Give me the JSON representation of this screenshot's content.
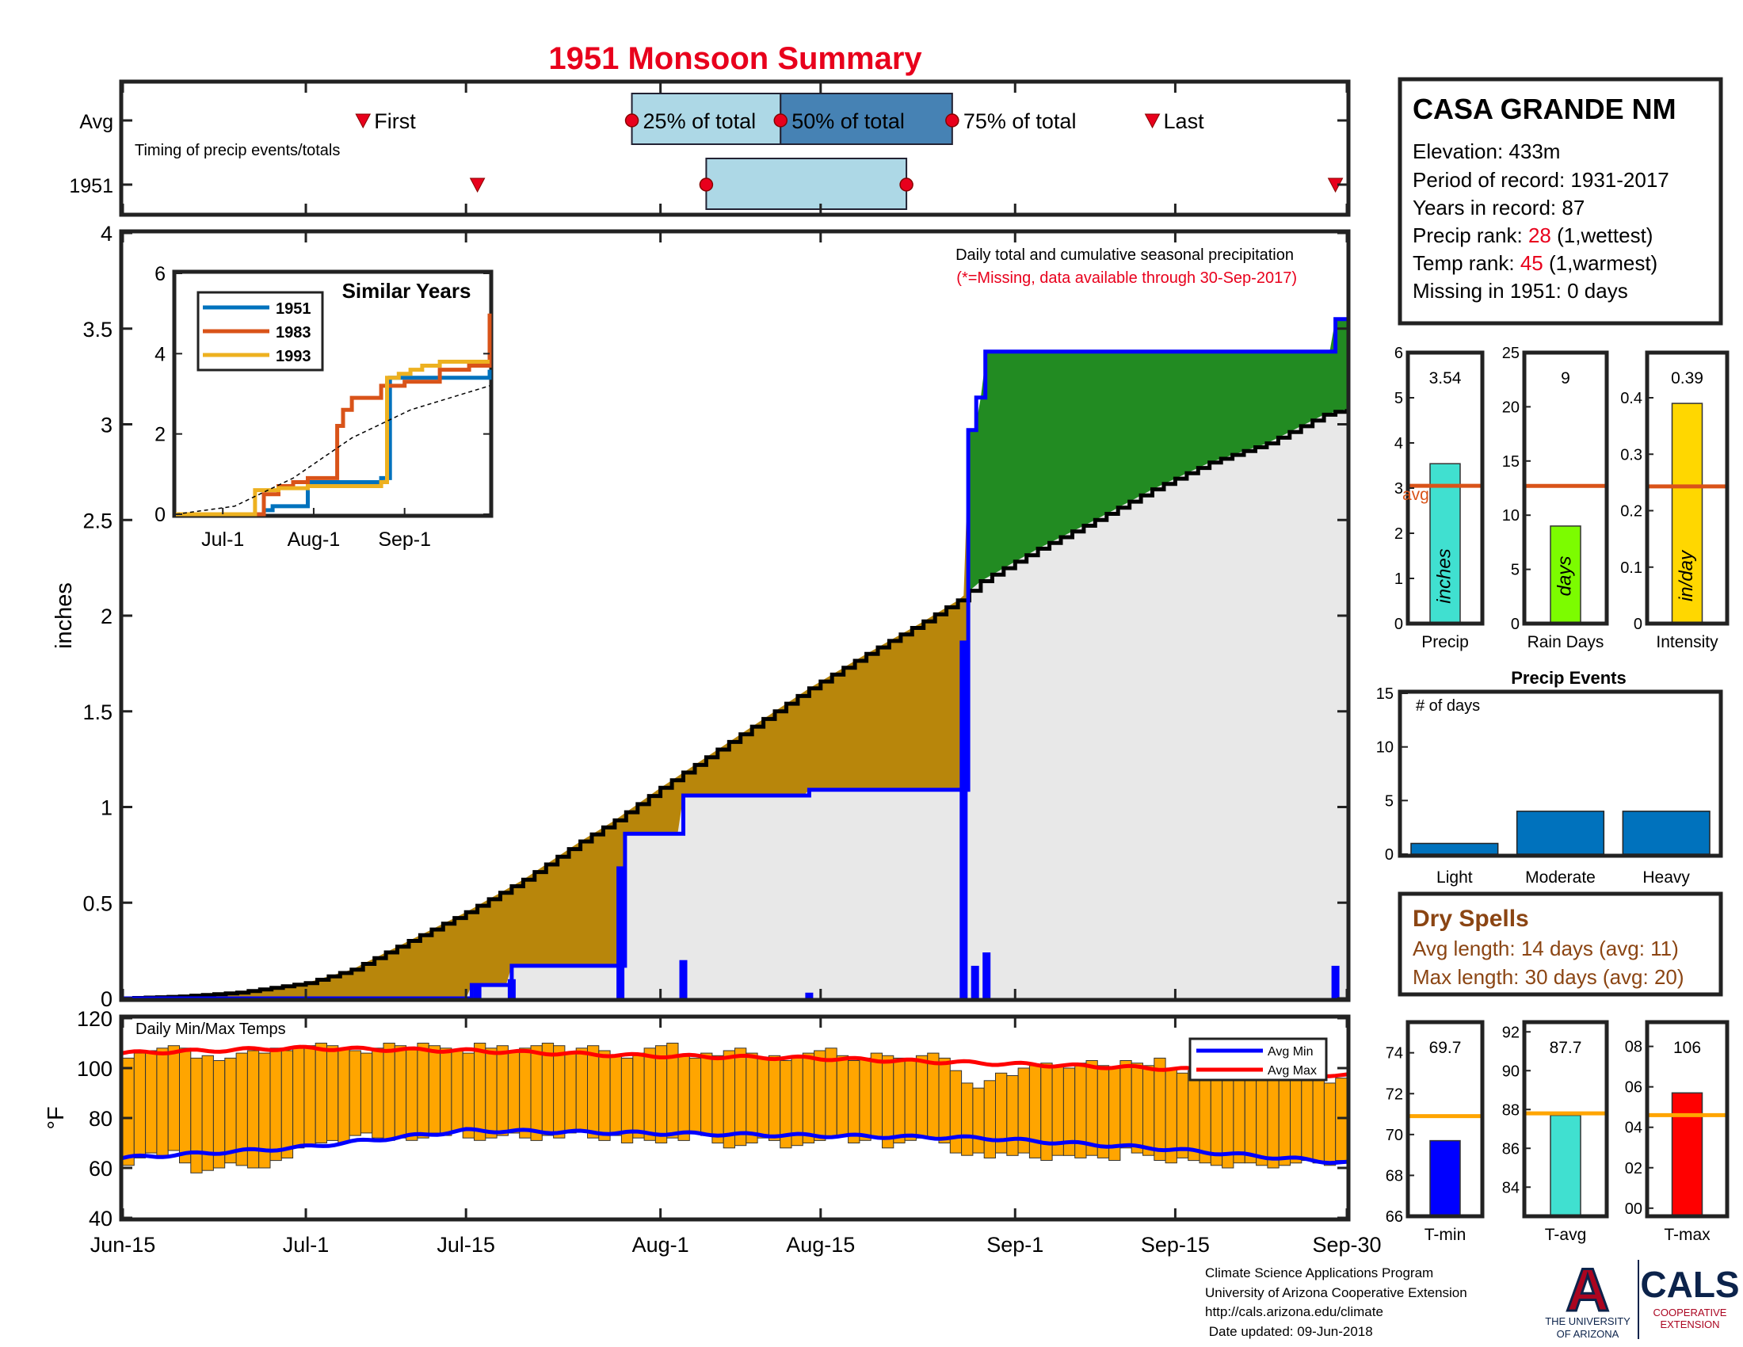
{
  "title": "1951 Monsoon Summary",
  "station": {
    "name": "CASA GRANDE NM",
    "elevation_label": "Elevation: 433m",
    "period_label": "Period of record: 1931-2017",
    "years_label": "Years in record: 87",
    "precip_rank_prefix": "Precip rank: ",
    "precip_rank": "28",
    "precip_rank_suffix": " (1,wettest)",
    "temp_rank_prefix": "Temp rank: ",
    "temp_rank": "45",
    "temp_rank_suffix": " (1,warmest)",
    "missing_label": "Missing in 1951: 0 days"
  },
  "colors": {
    "title_red": "#e8001c",
    "rank_red": "#e8001c",
    "brown_text": "#8b4513",
    "cum_obs_blue": "#0000ff",
    "surplus_green": "#228b22",
    "deficit_brown": "#b8860b",
    "normal_gray": "#e8e8e8",
    "timing_light": "#add8e6",
    "timing_dark": "#4682b4",
    "temp_bar": "#ffa500",
    "precip_bar": "#40e0d0",
    "raindays_bar": "#7cfc00",
    "intensity_bar": "#ffd700",
    "events_bar": "#0072bd",
    "avg_line_orange": "#d95319",
    "tmin_bar": "#0000ff",
    "tavg_bar": "#40e0d0",
    "tmax_bar": "#ff0000"
  },
  "timing_panel": {
    "row_labels": [
      "Avg",
      "1951"
    ],
    "caption": "Timing of precip events/totals",
    "avg_labels": {
      "first": "First",
      "p25": "25% of total",
      "p50": "50% of total",
      "p75": "75% of total",
      "last": "Last"
    },
    "avg_days": {
      "first": 21,
      "p25": 44.5,
      "p50": 57.5,
      "p75": 72.5,
      "last": 90
    },
    "y1951_days": {
      "first": 31,
      "p25": 51,
      "p75": 68.5,
      "last": 106
    }
  },
  "x_axis": {
    "tick_labels": [
      "Jun-15",
      "Jul-1",
      "Jul-15",
      "Aug-1",
      "Aug-15",
      "Sep-1",
      "Sep-15",
      "Sep-30"
    ],
    "tick_days": [
      0,
      16,
      30,
      47,
      61,
      78,
      92,
      107
    ]
  },
  "chart_data": [
    {
      "type": "area",
      "title": "Daily total and cumulative seasonal precipitation",
      "subtitle": "(*=Missing, data available through 30-Sep-2017)",
      "ylabel": "inches",
      "xlim": [
        0,
        107
      ],
      "ylim": [
        0,
        4
      ],
      "yticks": [
        0,
        0.5,
        1,
        1.5,
        2,
        2.5,
        3,
        3.5,
        4
      ],
      "cumulative_normal": {
        "x": [
          0,
          5,
          10,
          16,
          20,
          25,
          30,
          35,
          40,
          43,
          47,
          52,
          55,
          60,
          65,
          70,
          73,
          75,
          80,
          85,
          90,
          95,
          100,
          105,
          107
        ],
        "y": [
          0,
          0.01,
          0.03,
          0.08,
          0.15,
          0.3,
          0.45,
          0.62,
          0.82,
          0.93,
          1.1,
          1.3,
          1.42,
          1.62,
          1.8,
          1.97,
          2.08,
          2.18,
          2.35,
          2.5,
          2.66,
          2.8,
          2.9,
          3.05,
          3.08
        ]
      },
      "cumulative_1951": {
        "x": [
          0,
          30.5,
          34,
          43,
          43.9,
          49,
          60,
          73,
          73.9,
          74.6,
          75.4,
          106,
          107
        ],
        "y": [
          0,
          0.07,
          0.17,
          0.17,
          0.86,
          1.06,
          1.09,
          1.09,
          2.97,
          3.14,
          3.38,
          3.55,
          3.54
        ]
      },
      "daily_1951": {
        "x": [
          31,
          34,
          43.5,
          49,
          60,
          73.5,
          74.5,
          75.5,
          106
        ],
        "y": [
          0.07,
          0.1,
          0.69,
          0.2,
          0.03,
          1.87,
          0.17,
          0.24,
          0.17
        ]
      }
    },
    {
      "type": "line",
      "title": "Similar Years",
      "xtick_labels": [
        "Jul-1",
        "Aug-1",
        "Sep-1"
      ],
      "xtick_days": [
        16,
        47,
        78
      ],
      "xlim": [
        0,
        107
      ],
      "ylim": [
        0,
        6
      ],
      "yticks": [
        0,
        2,
        4,
        6
      ],
      "series": [
        {
          "name": "1951",
          "x": [
            0,
            28,
            30,
            33,
            45,
            70,
            73,
            76,
            80,
            107
          ],
          "y": [
            0,
            0,
            0.1,
            0.2,
            0.8,
            0.9,
            3.4,
            3.4,
            3.4,
            3.6
          ]
        },
        {
          "name": "1983",
          "x": [
            0,
            28,
            30,
            35,
            40,
            45,
            55,
            57,
            60,
            63,
            70,
            78,
            85,
            90,
            100,
            107
          ],
          "y": [
            0,
            0,
            0.5,
            0.7,
            0.8,
            0.9,
            2.2,
            2.6,
            2.9,
            2.9,
            3.2,
            3.3,
            3.3,
            3.6,
            3.7,
            5.0
          ]
        },
        {
          "name": "1993",
          "x": [
            0,
            26,
            27,
            35,
            45,
            70,
            72,
            76,
            80,
            84,
            90,
            107
          ],
          "y": [
            0,
            0,
            0.6,
            0.65,
            0.7,
            0.8,
            3.4,
            3.5,
            3.6,
            3.7,
            3.8,
            3.8
          ]
        },
        {
          "name": "",
          "x": [
            0,
            20,
            40,
            60,
            80,
            107
          ],
          "y": [
            0,
            0.2,
            0.9,
            1.9,
            2.6,
            3.2
          ]
        }
      ]
    },
    {
      "type": "bar",
      "title": "Daily Min/Max Temps",
      "ylabel": "°F",
      "ylim": [
        40,
        120
      ],
      "yticks": [
        40,
        60,
        80,
        100,
        120
      ],
      "legend": [
        "Avg Min",
        "Avg Max"
      ],
      "avg_min": {
        "x": [
          0,
          15,
          30,
          45,
          60,
          75,
          90,
          107
        ],
        "y": [
          64,
          68,
          75,
          74,
          73,
          72,
          68,
          62
        ]
      },
      "avg_max": {
        "x": [
          0,
          15,
          30,
          45,
          60,
          75,
          90,
          107
        ],
        "y": [
          106,
          108,
          107,
          105,
          104,
          102,
          100,
          97
        ]
      },
      "daily_min": [
        61,
        64,
        66,
        65,
        67,
        62,
        58,
        59,
        60,
        62,
        61,
        60,
        60,
        63,
        64,
        68,
        69,
        70,
        71,
        70,
        73,
        74,
        72,
        71,
        72,
        71,
        72,
        74,
        73,
        75,
        72,
        71,
        72,
        73,
        74,
        72,
        71,
        73,
        72,
        74,
        75,
        72,
        71,
        73,
        70,
        72,
        71,
        70,
        72,
        71,
        74,
        73,
        70,
        68,
        69,
        70,
        72,
        71,
        68,
        69,
        70,
        71,
        72,
        73,
        70,
        71,
        72,
        68,
        70,
        71,
        72,
        72,
        70,
        66,
        65,
        66,
        64,
        66,
        65,
        66,
        64,
        63,
        65,
        65,
        64,
        65,
        64,
        63,
        68,
        66,
        65,
        63,
        62,
        64,
        63,
        62,
        61,
        60,
        62,
        62,
        61,
        60,
        61,
        62,
        63,
        62,
        61,
        63
      ],
      "daily_max": [
        104,
        106,
        107,
        108,
        109,
        108,
        104,
        105,
        103,
        104,
        106,
        107,
        106,
        108,
        107,
        108,
        109,
        110,
        109,
        108,
        107,
        106,
        108,
        110,
        109,
        108,
        110,
        109,
        108,
        107,
        106,
        110,
        108,
        109,
        107,
        108,
        109,
        110,
        109,
        106,
        108,
        109,
        107,
        105,
        104,
        106,
        108,
        109,
        110,
        105,
        104,
        106,
        105,
        107,
        108,
        106,
        104,
        105,
        103,
        104,
        106,
        107,
        108,
        105,
        103,
        104,
        106,
        105,
        104,
        103,
        105,
        106,
        104,
        99,
        94,
        92,
        95,
        98,
        97,
        100,
        101,
        102,
        101,
        100,
        102,
        103,
        101,
        100,
        103,
        102,
        101,
        104,
        100,
        98,
        99,
        100,
        102,
        103,
        100,
        101,
        102,
        99,
        98,
        97,
        96,
        95,
        94,
        96
      ]
    },
    {
      "type": "bar",
      "categories": [
        "Precip",
        "Rain Days",
        "Intensity"
      ],
      "bar_text": [
        "inches",
        "days",
        "in/day"
      ],
      "values": [
        3.54,
        9,
        0.39
      ],
      "value_labels": [
        "3.54",
        "9",
        "0.39"
      ],
      "averages": [
        3.05,
        12.7,
        0.243
      ],
      "avg_label": "avg",
      "ylims": [
        [
          0,
          6
        ],
        [
          0,
          25
        ],
        [
          0,
          0.48
        ]
      ],
      "yticks": [
        [
          0,
          1,
          2,
          3,
          4,
          5,
          6
        ],
        [
          0,
          5,
          10,
          15,
          20,
          25
        ],
        [
          0.1,
          0.2,
          0.3,
          0.4
        ]
      ],
      "ytick_labels": [
        [
          "0",
          "1",
          "2",
          "3",
          "4",
          "5",
          "6"
        ],
        [
          "0",
          "5",
          "10",
          "15",
          "20",
          "25"
        ],
        [
          "0.1",
          "0.2",
          "0.3",
          "0.4"
        ]
      ],
      "intensity_zero_label": "0"
    },
    {
      "type": "bar",
      "title": "Precip Events",
      "inner_label": "# of days",
      "categories": [
        "Light",
        "Moderate",
        "Heavy"
      ],
      "values": [
        1,
        4,
        4
      ],
      "ylim": [
        0,
        15
      ],
      "yticks": [
        0,
        5,
        10,
        15
      ]
    },
    {
      "type": "bar",
      "categories": [
        "T-min",
        "T-avg",
        "T-max"
      ],
      "values": [
        69.7,
        87.7,
        105.7
      ],
      "value_labels": [
        "69.7",
        "87.7",
        "106"
      ],
      "averages": [
        70.9,
        87.8,
        104.6
      ],
      "ylims": [
        [
          66,
          75.5
        ],
        [
          82.5,
          92.5
        ],
        [
          99.6,
          109.2
        ]
      ],
      "yticks": [
        [
          66,
          68,
          70,
          72,
          74
        ],
        [
          84,
          86,
          88,
          90,
          92
        ],
        [
          100,
          102,
          104,
          106,
          108
        ]
      ],
      "ytick_labels": [
        [
          "66",
          "68",
          "70",
          "72",
          "74"
        ],
        [
          "84",
          "86",
          "88",
          "90",
          "92"
        ],
        [
          "00",
          "02",
          "04",
          "06",
          "08"
        ]
      ]
    }
  ],
  "dry_spells": {
    "title": "Dry Spells",
    "avg_length": "Avg length: 14 days (avg: 11)",
    "max_length": "Max length: 30 days (avg: 20)"
  },
  "footer": {
    "line1": "Climate Science Applications Program",
    "line2": "University of Arizona Cooperative Extension",
    "line3": "http://cals.arizona.edu/climate",
    "line4": " Date updated: 09-Jun-2018"
  },
  "logos": {
    "ua_line1": "THE UNIVERSITY",
    "ua_line2": "OF ARIZONA",
    "cals": "CALS",
    "cals_sub1": "COOPERATIVE",
    "cals_sub2": "EXTENSION",
    "ua_letter": "A"
  }
}
